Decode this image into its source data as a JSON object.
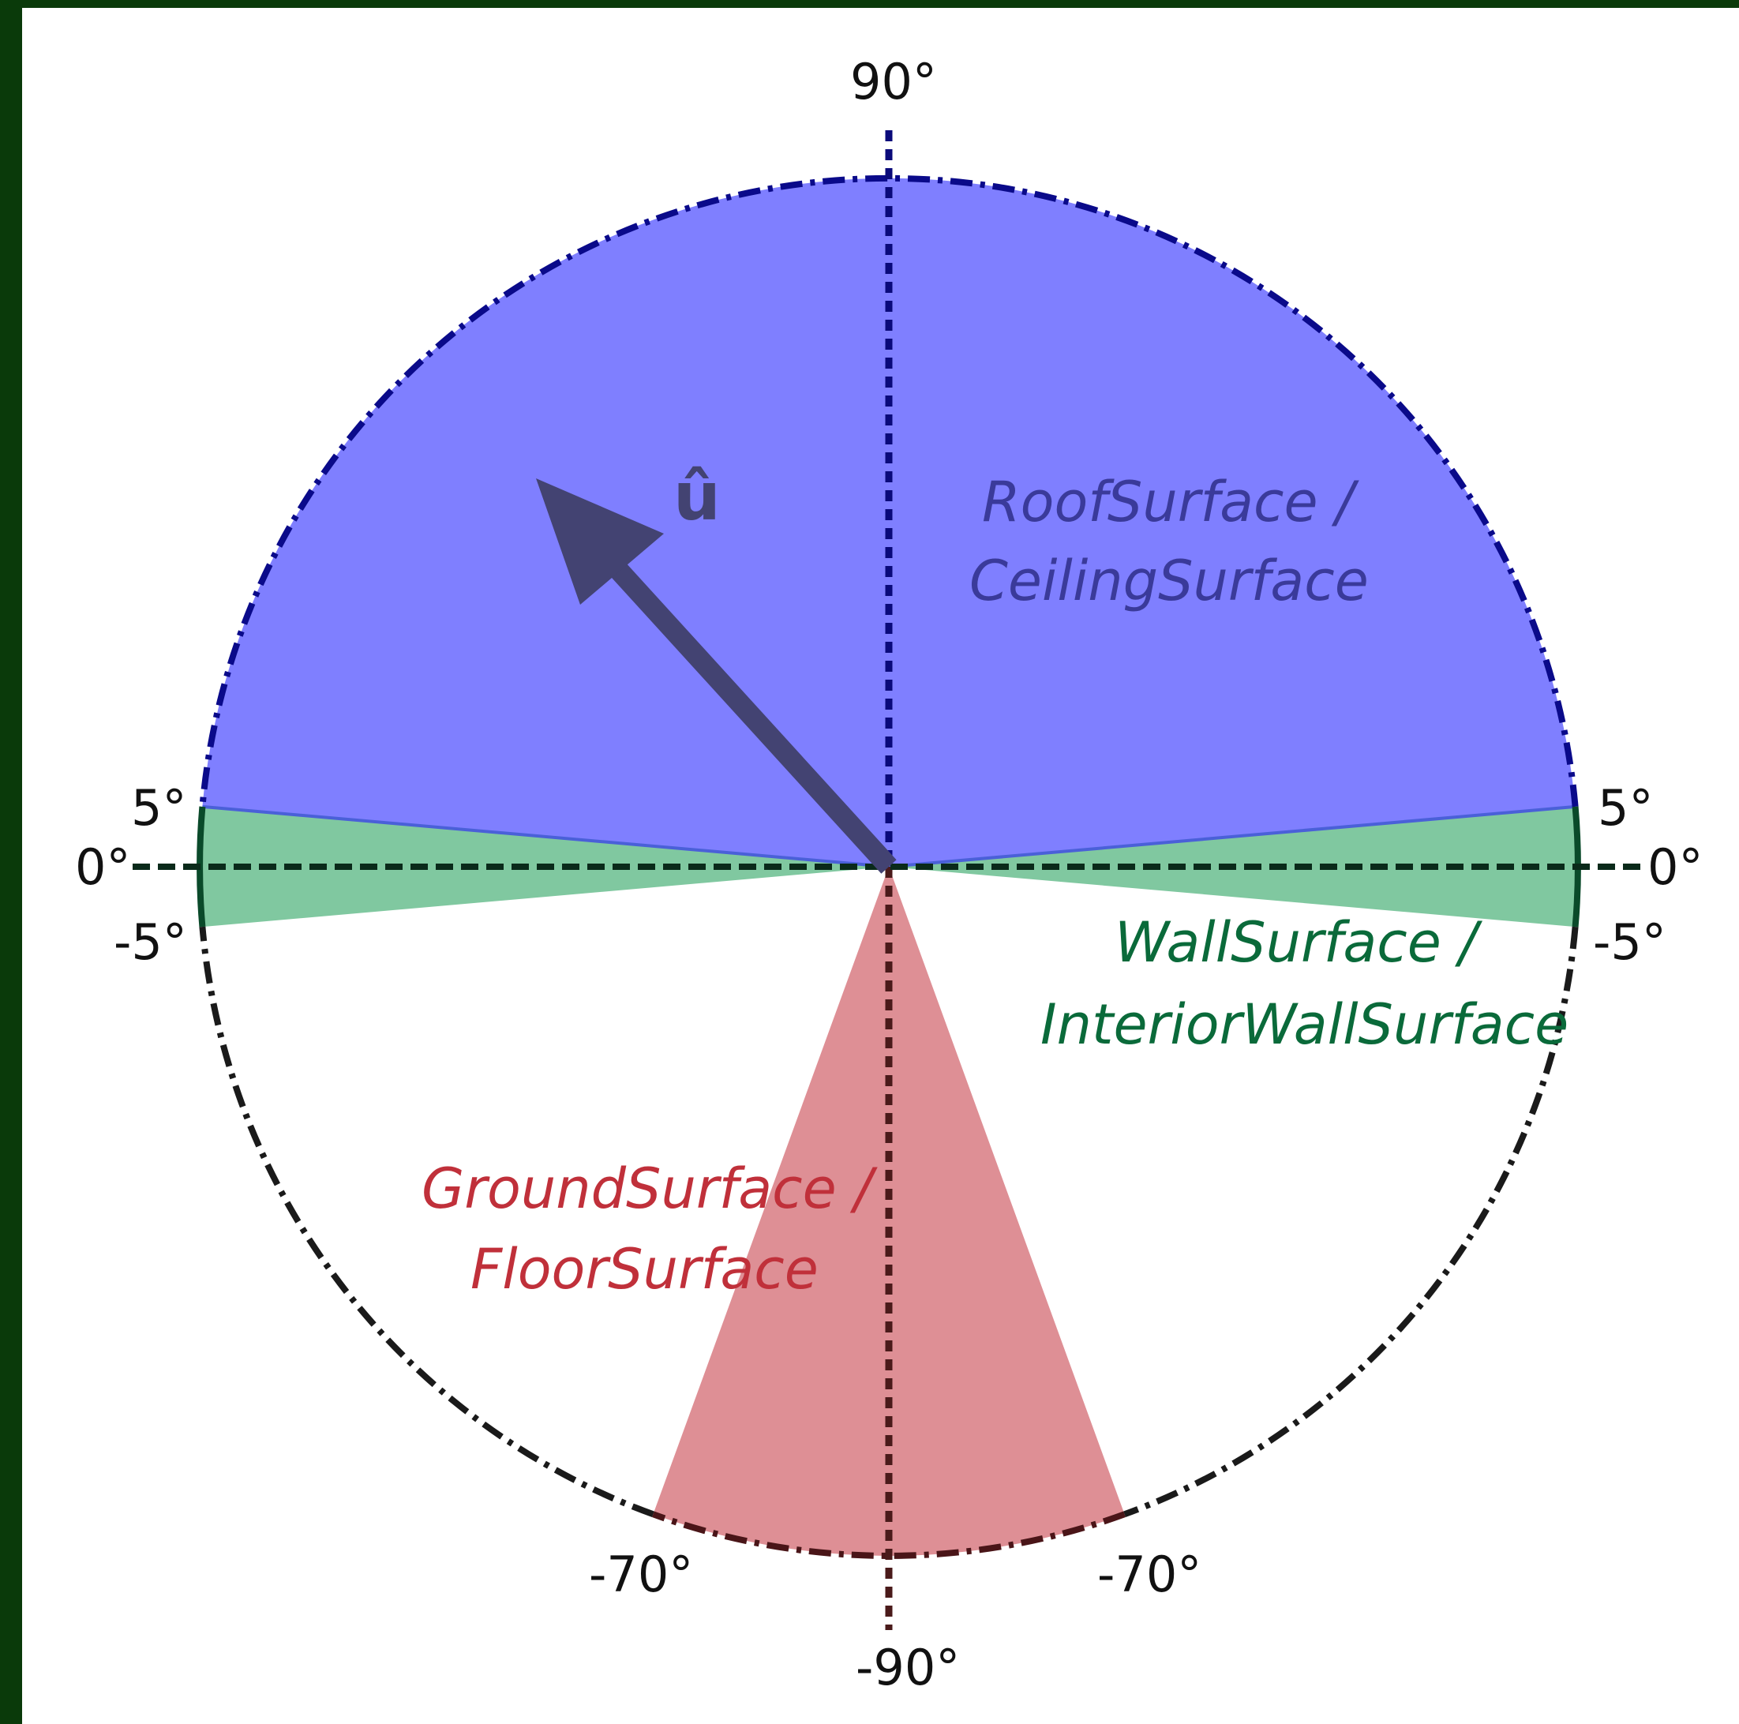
{
  "diagram": {
    "vector_label": "û",
    "angle_labels": {
      "top": "90°",
      "bottom": "-90°",
      "left_zero": "0°",
      "right_zero": "0°",
      "left_upper": "5°",
      "right_upper": "5°",
      "left_lower": "-5°",
      "right_lower": "-5°",
      "bottom_left": "-70°",
      "bottom_right": "-70°"
    },
    "regions": {
      "roof": {
        "line1": "RoofSurface /",
        "line2": "CeilingSurface",
        "angle_min": 5,
        "angle_max": 90,
        "fill": "#7f7fff",
        "text_color": "#3a3a9a"
      },
      "wall": {
        "line1": "WallSurface /",
        "line2": "InteriorWallSurface",
        "angle_min": -5,
        "angle_max": 5,
        "fill": "#80c8a0",
        "text_color": "#0a6a3a"
      },
      "ground": {
        "line1": "GroundSurface /",
        "line2": "FloorSurface",
        "angle_min": -90,
        "angle_max": -70,
        "fill": "#de8f95",
        "text_color": "#c0303a"
      }
    },
    "vector_angle_deg": 135
  }
}
